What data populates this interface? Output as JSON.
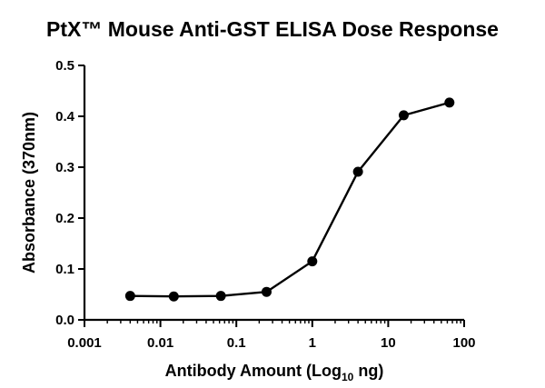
{
  "chart_data": {
    "type": "line",
    "title": "PtX™ Mouse Anti-GST ELISA Dose Response",
    "xlabel": {
      "main": "Antibody Amount (Log",
      "sub": "10",
      "suffix": " ng)"
    },
    "ylabel": "Absorbance (370nm)",
    "xscale": "log",
    "xlim": [
      0.001,
      100
    ],
    "ylim": [
      0,
      0.5
    ],
    "xticks": [
      0.001,
      0.01,
      0.1,
      1,
      10,
      100
    ],
    "xtick_labels": [
      "0.001",
      "0.01",
      "0.1",
      "1",
      "10",
      "100"
    ],
    "yticks": [
      0,
      0.1,
      0.2,
      0.3,
      0.4,
      0.5
    ],
    "ytick_labels": [
      "0.0",
      "0.1",
      "0.2",
      "0.3",
      "0.4",
      "0.5"
    ],
    "grid": false,
    "legend": "none",
    "series": [
      {
        "name": "PtX Mouse Anti-GST",
        "x": [
          0.004,
          0.015,
          0.0625,
          0.25,
          1,
          4,
          16,
          64
        ],
        "y": [
          0.047,
          0.046,
          0.047,
          0.055,
          0.115,
          0.291,
          0.402,
          0.427
        ]
      }
    ]
  }
}
